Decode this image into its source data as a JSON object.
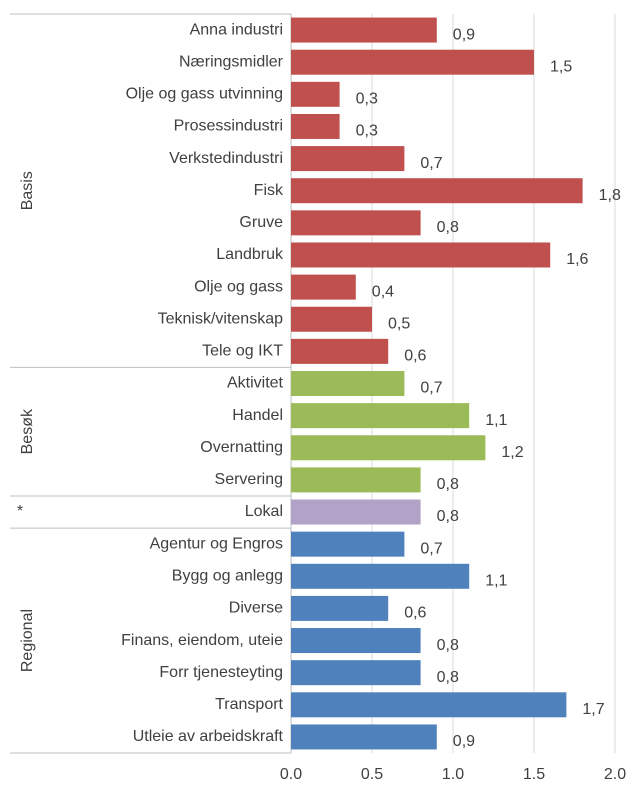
{
  "chart_data": {
    "type": "bar",
    "groups": [
      {
        "label": "Basis",
        "color": "#c0504d",
        "categories": [
          "Anna industri",
          "Næringsmidler",
          "Olje og gass utvinning",
          "Prosessindustri",
          "Verkstedindustri",
          "Fisk",
          "Gruve",
          "Landbruk",
          "Olje og gass",
          "Teknisk/vitenskap",
          "Tele og IKT"
        ],
        "values": [
          0.9,
          1.5,
          0.3,
          0.3,
          0.7,
          1.8,
          0.8,
          1.6,
          0.4,
          0.5,
          0.6
        ],
        "value_labels": [
          "0,9",
          "1,5",
          "0,3",
          "0,3",
          "0,7",
          "1,8",
          "0,8",
          "1,6",
          "0,4",
          "0,5",
          "0,6"
        ]
      },
      {
        "label": "Besøk",
        "color": "#9bbb59",
        "categories": [
          "Aktivitet",
          "Handel",
          "Overnatting",
          "Servering"
        ],
        "values": [
          0.7,
          1.1,
          1.2,
          0.8
        ],
        "value_labels": [
          "0,7",
          "1,1",
          "1,2",
          "0,8"
        ]
      },
      {
        "label": "*",
        "color": "#b3a2c7",
        "categories": [
          "Lokal"
        ],
        "values": [
          0.8
        ],
        "value_labels": [
          "0,8"
        ]
      },
      {
        "label": "Regional",
        "color": "#4f81bd",
        "categories": [
          "Agentur og Engros",
          "Bygg og anlegg",
          "Diverse",
          "Finans, eiendom, uteie",
          "Forr tjenesteyting",
          "Transport",
          "Utleie av arbeidskraft"
        ],
        "values": [
          0.7,
          1.1,
          0.6,
          0.8,
          0.8,
          1.7,
          0.9
        ],
        "value_labels": [
          "0,7",
          "1,1",
          "0,6",
          "0,8",
          "0,8",
          "1,7",
          "0,9"
        ]
      }
    ],
    "xlim": [
      0,
      2
    ],
    "xticks": [
      {
        "value": 0,
        "label": "0.0"
      },
      {
        "value": 0.5,
        "label": "0.5"
      },
      {
        "value": 1,
        "label": "1.0"
      },
      {
        "value": 1.5,
        "label": "1.5"
      },
      {
        "value": 2,
        "label": "2.0"
      }
    ],
    "grid": true
  }
}
